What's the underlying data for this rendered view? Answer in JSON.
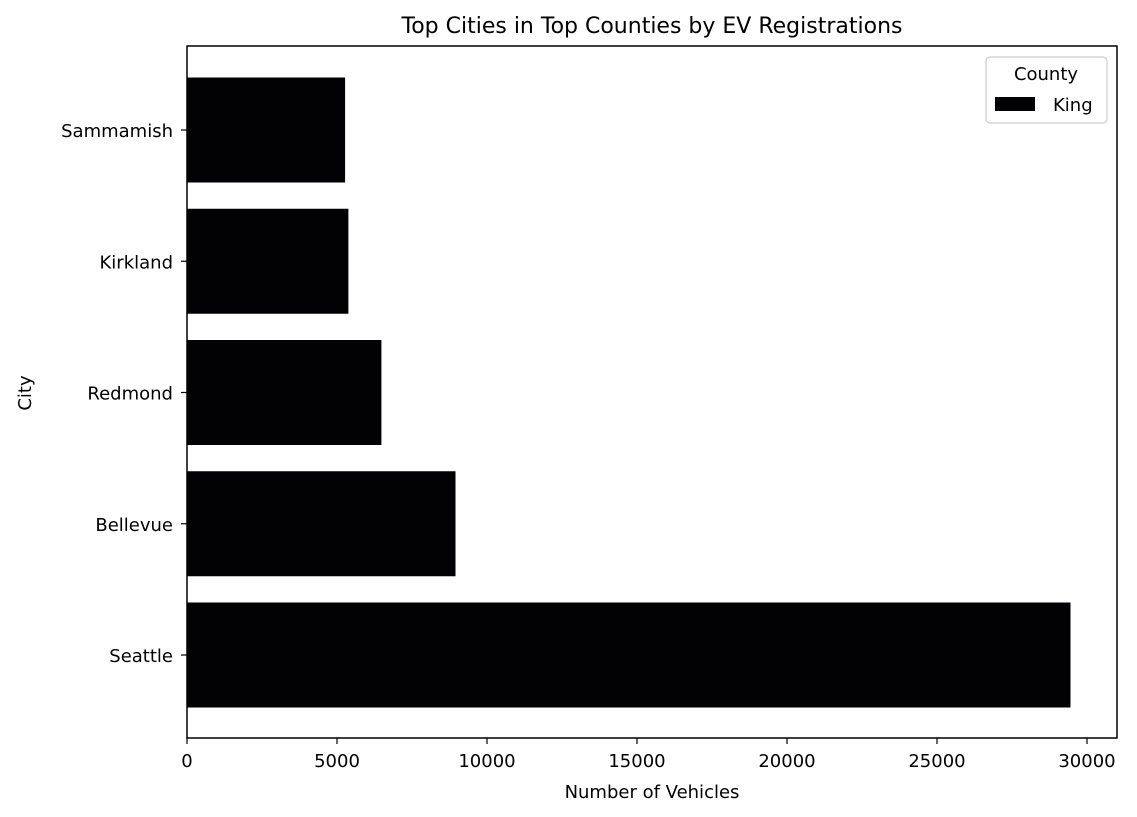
{
  "chart_data": {
    "type": "bar",
    "orientation": "horizontal",
    "title": "Top Cities in Top Counties by EV Registrations",
    "xlabel": "Number of Vehicles",
    "ylabel": "City",
    "categories": [
      "Seattle",
      "Bellevue",
      "Redmond",
      "Kirkland",
      "Sammamish"
    ],
    "series": [
      {
        "name": "King",
        "values": [
          29450,
          8950,
          6480,
          5380,
          5270
        ],
        "color": "#020104"
      }
    ],
    "xlim": [
      0,
      31000
    ],
    "xticks": [
      0,
      5000,
      10000,
      15000,
      20000,
      25000,
      30000
    ],
    "xtick_labels": [
      "0",
      "5000",
      "10000",
      "15000",
      "20000",
      "25000",
      "30000"
    ],
    "grid": false,
    "legend": {
      "title": "County",
      "position": "top-right",
      "entries": [
        "King"
      ]
    }
  }
}
